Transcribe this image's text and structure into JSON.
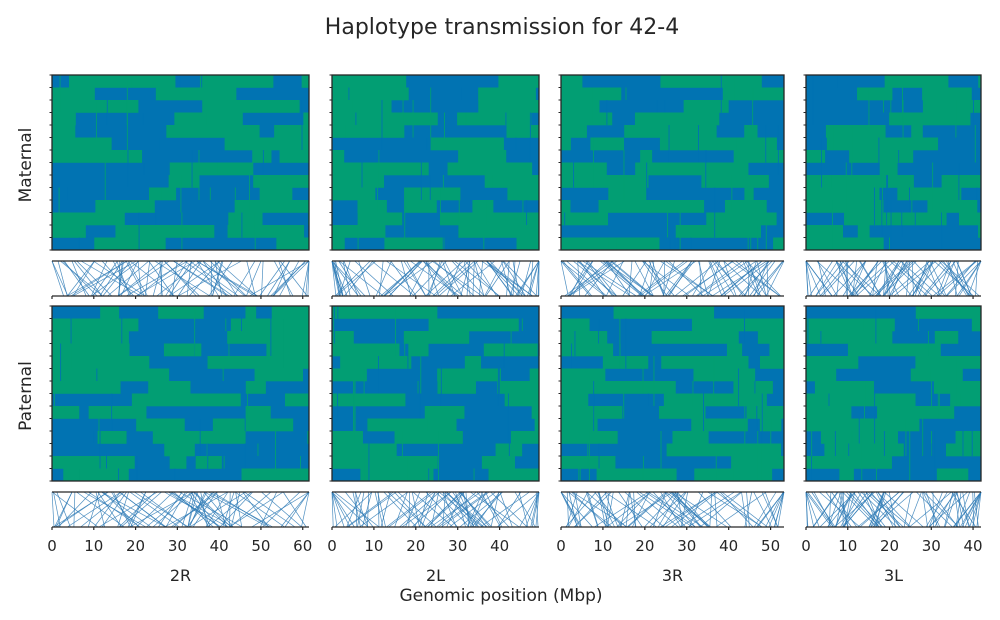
{
  "chart_data": {
    "type": "heatmap",
    "title": "Haplotype transmission for 42-4",
    "xlabel": "Genomic position (Mbp)",
    "row_labels": [
      "Maternal",
      "Paternal"
    ],
    "colors": {
      "hap_a": "#0173b2",
      "hap_b": "#029e73",
      "link": "#2f7bb6",
      "frame": "#262626"
    },
    "chromosomes": [
      {
        "name": "2R",
        "length": 61.5,
        "ticks": [
          0,
          10,
          20,
          30,
          40,
          50,
          60
        ]
      },
      {
        "name": "2L",
        "length": 49.4,
        "ticks": [
          0,
          10,
          20,
          30,
          40
        ]
      },
      {
        "name": "3R",
        "length": 53.2,
        "ticks": [
          0,
          10,
          20,
          30,
          40,
          50
        ]
      },
      {
        "name": "3L",
        "length": 41.9,
        "ticks": [
          0,
          10,
          20,
          30,
          40
        ]
      }
    ]
  }
}
